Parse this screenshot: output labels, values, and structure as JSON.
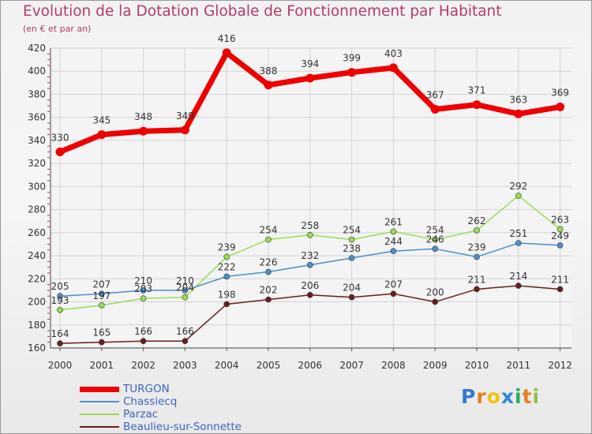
{
  "chart_data": {
    "type": "line",
    "title": "Evolution de la Dotation Globale de Fonctionnement par Habitant",
    "subtitle": "(en € et par an)",
    "x": [
      "2000",
      "2001",
      "2002",
      "2003",
      "2004",
      "2005",
      "2006",
      "2007",
      "2008",
      "2009",
      "2010",
      "2011",
      "2012"
    ],
    "ylim": [
      160,
      420
    ],
    "yticks": [
      160,
      180,
      200,
      220,
      240,
      260,
      280,
      300,
      320,
      340,
      360,
      380,
      400,
      420
    ],
    "grid": true,
    "legend_position": "bottom-left",
    "series": [
      {
        "name": "TURGON",
        "color": "#ee0000",
        "values": [
          330,
          345,
          348,
          349,
          416,
          388,
          394,
          399,
          403,
          367,
          371,
          363,
          369
        ]
      },
      {
        "name": "Chassiecq",
        "color": "#4d8fcc",
        "values": [
          205,
          207,
          210,
          210,
          222,
          226,
          232,
          238,
          244,
          246,
          239,
          251,
          249
        ]
      },
      {
        "name": "Parzac",
        "color": "#99dd55",
        "values": [
          193,
          197,
          203,
          204,
          239,
          254,
          258,
          254,
          261,
          254,
          262,
          292,
          263
        ]
      },
      {
        "name": "Beaulieu-sur-Sonnette",
        "color": "#6b1d1d",
        "values": [
          164,
          165,
          166,
          166,
          198,
          202,
          206,
          204,
          207,
          200,
          211,
          214,
          211
        ]
      }
    ]
  },
  "brand": {
    "letters": [
      "P",
      "r",
      "o",
      "x",
      "i",
      "t",
      "i"
    ],
    "colors": [
      "#3377cc",
      "#e67e22",
      "#f1c40f",
      "#2e86de",
      "#27ae60",
      "#e67e22",
      "#8bc34a"
    ]
  }
}
